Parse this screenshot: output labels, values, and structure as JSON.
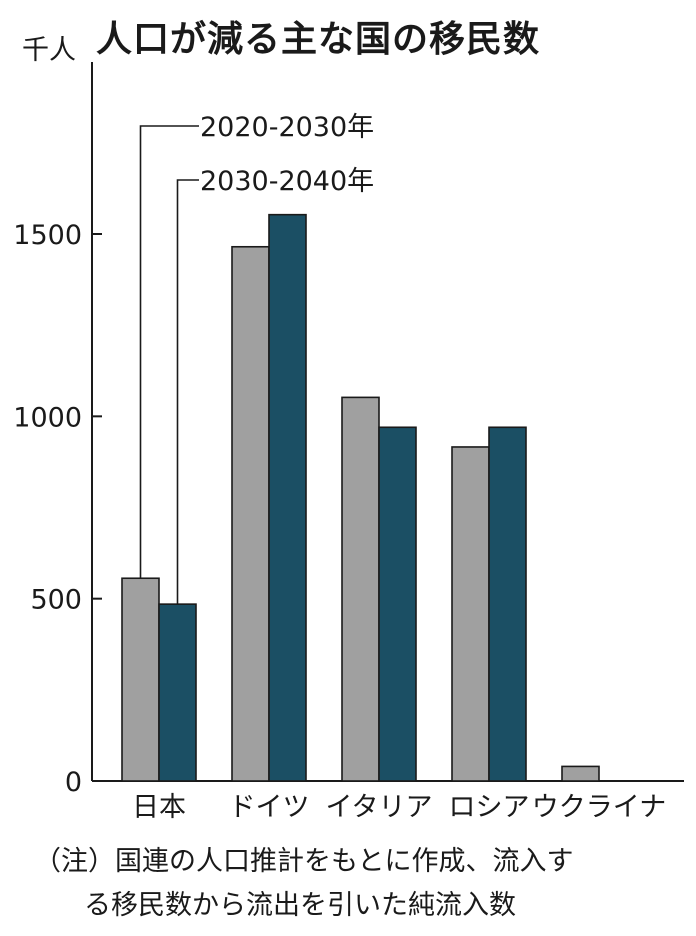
{
  "chart_data": {
    "type": "bar",
    "title": "人口が減る主な国の移民数",
    "unit_label": "千人",
    "categories": [
      "日本",
      "ドイツ",
      "イタリア",
      "ロシア",
      "ウクライナ"
    ],
    "series": [
      {
        "name": "2020-2030年",
        "color": "#a0a0a0",
        "values": [
          556,
          1465,
          1052,
          916,
          40
        ]
      },
      {
        "name": "2030-2040年",
        "color": "#1b4f64",
        "values": [
          485,
          1553,
          970,
          970,
          0
        ]
      }
    ],
    "yticks": [
      0,
      500,
      1000,
      1500
    ],
    "ylim": [
      0,
      1500
    ],
    "xlabel": "",
    "ylabel": "",
    "legend": "top-left",
    "grid": false,
    "note": {
      "line1": "（注）国連の人口推計をもとに作成、流入す",
      "line2": "る移民数から流出を引いた純流入数"
    }
  }
}
